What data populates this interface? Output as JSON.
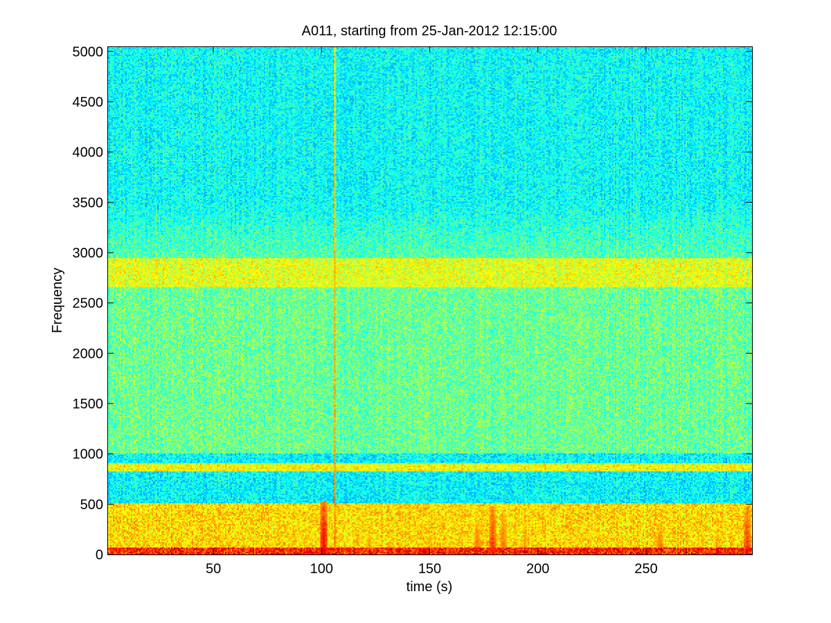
{
  "chart_data": {
    "type": "heatmap",
    "title": "A011, starting from 25-Jan-2012 12:15:00",
    "xlabel": "time (s)",
    "ylabel": "Frequency",
    "xlim": [
      1,
      299
    ],
    "ylim": [
      0,
      5050
    ],
    "x_ticks": [
      50,
      100,
      150,
      200,
      250
    ],
    "y_ticks": [
      0,
      500,
      1000,
      1500,
      2000,
      2500,
      3000,
      3500,
      4000,
      4500,
      5000
    ],
    "grid": false,
    "colormap": "jet",
    "colors": {
      "low": "#1ee6d2",
      "mid": "#7dff80",
      "high": "#ffff00",
      "peak": "#cc0000"
    },
    "bands": [
      {
        "freq_range": [
          3500,
          5050
        ],
        "level": 0.38,
        "color": "cyan"
      },
      {
        "freq_range": [
          3000,
          3500
        ],
        "level": 0.46,
        "color": "cyan-green"
      },
      {
        "freq_range": [
          2650,
          2950
        ],
        "level": 0.6,
        "color": "yellow-green"
      },
      {
        "freq_range": [
          1000,
          2650
        ],
        "level": 0.48,
        "color": "green"
      },
      {
        "freq_range": [
          820,
          900
        ],
        "level": 0.62,
        "color": "yellow"
      },
      {
        "freq_range": [
          0,
          500
        ],
        "level": 0.66,
        "color": "yellow"
      }
    ],
    "events": [
      {
        "time": 101,
        "max_freq": 520,
        "intensity": 0.9
      },
      {
        "time": 106,
        "max_freq": 5050,
        "intensity": 0.75
      },
      {
        "time": 122,
        "max_freq": 250,
        "intensity": 0.75
      },
      {
        "time": 150,
        "max_freq": 220,
        "intensity": 0.75
      },
      {
        "time": 172,
        "max_freq": 320,
        "intensity": 0.8
      },
      {
        "time": 179,
        "max_freq": 470,
        "intensity": 0.85
      },
      {
        "time": 184,
        "max_freq": 400,
        "intensity": 0.8
      },
      {
        "time": 194,
        "max_freq": 340,
        "intensity": 0.75
      },
      {
        "time": 257,
        "max_freq": 300,
        "intensity": 0.8
      },
      {
        "time": 283,
        "max_freq": 220,
        "intensity": 0.75
      },
      {
        "time": 297,
        "max_freq": 470,
        "intensity": 0.85
      }
    ]
  }
}
